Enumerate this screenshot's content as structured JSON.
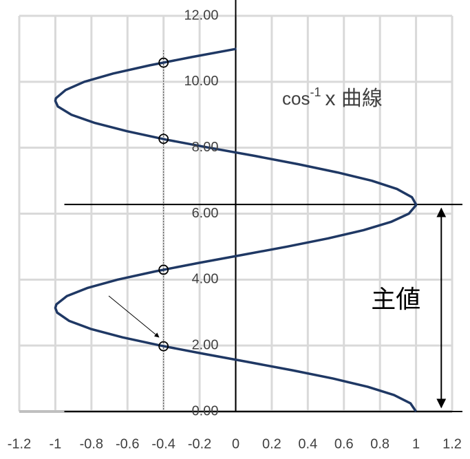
{
  "chart_data": {
    "type": "line",
    "annotation": {
      "text": "cos",
      "sup": "-1",
      "rest": "x 曲線"
    },
    "xlim": [
      -1.2,
      1.2
    ],
    "ylim": [
      0,
      12
    ],
    "xticks": [
      -1.2,
      -1,
      -0.8,
      -0.6,
      -0.4,
      -0.2,
      0,
      0.2,
      0.4,
      0.6,
      0.8,
      1,
      1.2
    ],
    "yticks": [
      {
        "value": 0,
        "label": "0.00"
      },
      {
        "value": 2,
        "label": "2.00"
      },
      {
        "value": 4,
        "label": "4.00"
      },
      {
        "value": 6,
        "label": "6.00"
      },
      {
        "value": 8,
        "label": "8.00"
      },
      {
        "value": 10,
        "label": "10.00"
      },
      {
        "value": 12,
        "label": "12.00"
      }
    ],
    "grid": true,
    "series": [
      {
        "color": "#1f3864",
        "x": [
          1,
          0.969,
          0.878,
          0.732,
          0.54,
          0.315,
          0.071,
          -0.178,
          -0.416,
          -0.628,
          -0.801,
          -0.924,
          -0.99,
          -1,
          -0.994,
          -0.936,
          -0.82,
          -0.654,
          -0.446,
          -0.211,
          0.038,
          0.284,
          0.512,
          0.709,
          0.861,
          0.96,
          0.999,
          1,
          0.977,
          0.894,
          0.754,
          0.565,
          0.347,
          0.108,
          -0.146,
          -0.39,
          -0.602,
          -0.78,
          -0.911,
          -0.986,
          -1,
          -0.997,
          -0.943,
          -0.839,
          -0.679,
          -0.476,
          -0.243,
          0.004
        ],
        "values": [
          0,
          0.25,
          0.5,
          0.75,
          1,
          1.25,
          1.5,
          1.75,
          2,
          2.25,
          2.5,
          2.75,
          3,
          3.14,
          3.25,
          3.5,
          3.75,
          4,
          4.25,
          4.5,
          4.75,
          5,
          5.25,
          5.5,
          5.75,
          6,
          6.25,
          6.28,
          6.5,
          6.75,
          7,
          7.25,
          7.5,
          7.75,
          8,
          8.25,
          8.5,
          8.75,
          9,
          9.25,
          9.42,
          9.5,
          9.75,
          10,
          10.25,
          10.5,
          10.75,
          11
        ]
      }
    ],
    "markers": {
      "x": -0.4,
      "y": [
        1.98,
        4.3,
        8.27,
        10.58
      ]
    },
    "hlines": [
      0,
      6.28
    ],
    "span": {
      "x": 1.14,
      "y": [
        0,
        6.28
      ],
      "label": "主値"
    }
  }
}
